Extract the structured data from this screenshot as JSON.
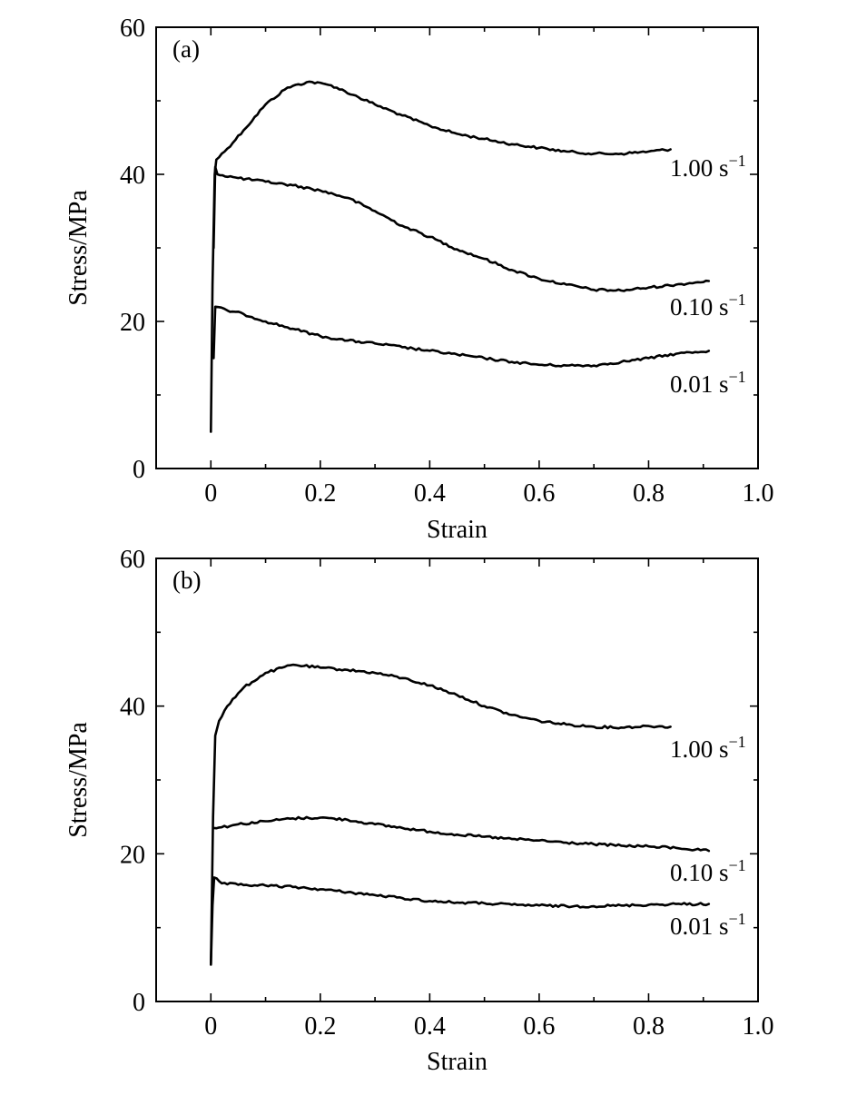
{
  "chart_data": [
    {
      "type": "line",
      "panel_label": "(a)",
      "xlabel": "Strain",
      "ylabel": "Stress/MPa",
      "xlim": [
        -0.1,
        1.0
      ],
      "ylim": [
        0,
        60
      ],
      "x_ticks": [
        "0",
        "0.2",
        "0.4",
        "0.6",
        "0.8",
        "1.0"
      ],
      "y_ticks": [
        "0",
        "20",
        "40",
        "60"
      ],
      "series": [
        {
          "name": "1.00 s",
          "superscript": "−1",
          "points": [
            [
              0,
              5
            ],
            [
              0.003,
              25
            ],
            [
              0.007,
              40
            ],
            [
              0.01,
              42
            ],
            [
              0.03,
              43.5
            ],
            [
              0.06,
              46
            ],
            [
              0.1,
              49.5
            ],
            [
              0.14,
              51.8
            ],
            [
              0.18,
              52.6
            ],
            [
              0.22,
              52.1
            ],
            [
              0.26,
              50.8
            ],
            [
              0.3,
              49.5
            ],
            [
              0.35,
              48
            ],
            [
              0.4,
              46.6
            ],
            [
              0.45,
              45.5
            ],
            [
              0.5,
              44.8
            ],
            [
              0.55,
              44.1
            ],
            [
              0.6,
              43.6
            ],
            [
              0.65,
              43.1
            ],
            [
              0.7,
              42.8
            ],
            [
              0.75,
              42.8
            ],
            [
              0.8,
              43.1
            ],
            [
              0.84,
              43.4
            ]
          ]
        },
        {
          "name": "0.10 s",
          "superscript": "−1",
          "points": [
            [
              0.005,
              30
            ],
            [
              0.008,
              41
            ],
            [
              0.012,
              40
            ],
            [
              0.05,
              39.5
            ],
            [
              0.1,
              39
            ],
            [
              0.15,
              38.5
            ],
            [
              0.2,
              37.8
            ],
            [
              0.25,
              36.8
            ],
            [
              0.3,
              35
            ],
            [
              0.35,
              33
            ],
            [
              0.4,
              31.5
            ],
            [
              0.45,
              29.8
            ],
            [
              0.5,
              28.5
            ],
            [
              0.55,
              27
            ],
            [
              0.6,
              25.8
            ],
            [
              0.65,
              25
            ],
            [
              0.7,
              24.3
            ],
            [
              0.75,
              24.2
            ],
            [
              0.8,
              24.6
            ],
            [
              0.85,
              25
            ],
            [
              0.91,
              25.5
            ]
          ]
        },
        {
          "name": "0.01 s",
          "superscript": "−1",
          "points": [
            [
              0.005,
              15
            ],
            [
              0.008,
              22
            ],
            [
              0.03,
              21.5
            ],
            [
              0.06,
              21
            ],
            [
              0.1,
              20
            ],
            [
              0.15,
              19
            ],
            [
              0.2,
              18
            ],
            [
              0.25,
              17.4
            ],
            [
              0.3,
              17
            ],
            [
              0.35,
              16.5
            ],
            [
              0.4,
              16
            ],
            [
              0.45,
              15.5
            ],
            [
              0.5,
              15
            ],
            [
              0.55,
              14.5
            ],
            [
              0.6,
              14.1
            ],
            [
              0.65,
              14
            ],
            [
              0.7,
              14
            ],
            [
              0.75,
              14.5
            ],
            [
              0.8,
              15
            ],
            [
              0.85,
              15.6
            ],
            [
              0.91,
              16
            ]
          ]
        }
      ]
    },
    {
      "type": "line",
      "panel_label": "(b)",
      "xlabel": "Strain",
      "ylabel": "Stress/MPa",
      "xlim": [
        -0.1,
        1.0
      ],
      "ylim": [
        0,
        60
      ],
      "x_ticks": [
        "0",
        "0.2",
        "0.4",
        "0.6",
        "0.8",
        "1.0"
      ],
      "y_ticks": [
        "0",
        "20",
        "40",
        "60"
      ],
      "series": [
        {
          "name": "1.00 s",
          "superscript": "−1",
          "points": [
            [
              0,
              5
            ],
            [
              0.004,
              25
            ],
            [
              0.008,
              36
            ],
            [
              0.015,
              38
            ],
            [
              0.03,
              40
            ],
            [
              0.06,
              42.5
            ],
            [
              0.1,
              44.5
            ],
            [
              0.15,
              45.6
            ],
            [
              0.2,
              45.2
            ],
            [
              0.25,
              44.9
            ],
            [
              0.3,
              44.5
            ],
            [
              0.35,
              43.8
            ],
            [
              0.4,
              42.8
            ],
            [
              0.45,
              41.5
            ],
            [
              0.5,
              40
            ],
            [
              0.55,
              38.8
            ],
            [
              0.6,
              38
            ],
            [
              0.65,
              37.5
            ],
            [
              0.7,
              37.2
            ],
            [
              0.75,
              37.1
            ],
            [
              0.8,
              37.3
            ],
            [
              0.84,
              37.2
            ]
          ]
        },
        {
          "name": "0.10 s",
          "superscript": "−1",
          "points": [
            [
              0.005,
              23.5
            ],
            [
              0.02,
              23.6
            ],
            [
              0.05,
              24
            ],
            [
              0.1,
              24.4
            ],
            [
              0.15,
              24.8
            ],
            [
              0.2,
              24.9
            ],
            [
              0.25,
              24.6
            ],
            [
              0.3,
              24
            ],
            [
              0.35,
              23.5
            ],
            [
              0.4,
              23
            ],
            [
              0.45,
              22.6
            ],
            [
              0.5,
              22.3
            ],
            [
              0.55,
              22
            ],
            [
              0.6,
              21.8
            ],
            [
              0.65,
              21.5
            ],
            [
              0.7,
              21.3
            ],
            [
              0.75,
              21.1
            ],
            [
              0.8,
              21
            ],
            [
              0.85,
              20.8
            ],
            [
              0.91,
              20.4
            ]
          ]
        },
        {
          "name": "0.01 s",
          "superscript": "−1",
          "points": [
            [
              0,
              5
            ],
            [
              0.003,
              13
            ],
            [
              0.006,
              16.8
            ],
            [
              0.02,
              16
            ],
            [
              0.05,
              15.8
            ],
            [
              0.1,
              15.7
            ],
            [
              0.15,
              15.5
            ],
            [
              0.2,
              15.2
            ],
            [
              0.25,
              14.8
            ],
            [
              0.3,
              14.4
            ],
            [
              0.35,
              14
            ],
            [
              0.4,
              13.6
            ],
            [
              0.45,
              13.4
            ],
            [
              0.5,
              13.3
            ],
            [
              0.55,
              13.1
            ],
            [
              0.6,
              13
            ],
            [
              0.65,
              12.9
            ],
            [
              0.7,
              12.9
            ],
            [
              0.75,
              13
            ],
            [
              0.8,
              13.1
            ],
            [
              0.85,
              13.2
            ],
            [
              0.91,
              13.2
            ]
          ]
        }
      ]
    }
  ]
}
